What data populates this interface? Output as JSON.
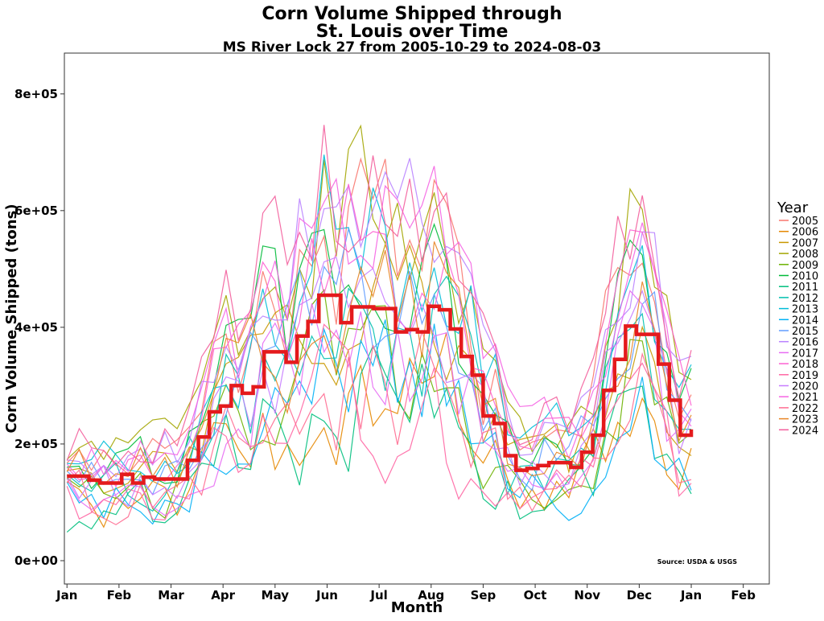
{
  "chart_data": {
    "type": "line",
    "title": "Corn Volume Shipped through\nSt. Louis over Time",
    "subtitle": "MS River Lock 27 from 2005-10-29 to 2024-08-03",
    "xlabel": "Month",
    "ylabel": "Corn Volume Shipped (tons)",
    "source": "Source: USDA & USGS",
    "legend_title": "Year",
    "legend_position": "right",
    "grid": false,
    "xlim": [
      0.95,
      14.5
    ],
    "ylim": [
      -40000,
      870000
    ],
    "x_ticks": [
      {
        "value": 1,
        "label": "Jan"
      },
      {
        "value": 2,
        "label": "Feb"
      },
      {
        "value": 3,
        "label": "Mar"
      },
      {
        "value": 4,
        "label": "Apr"
      },
      {
        "value": 5,
        "label": "May"
      },
      {
        "value": 6,
        "label": "Jun"
      },
      {
        "value": 7,
        "label": "Jul"
      },
      {
        "value": 8,
        "label": "Aug"
      },
      {
        "value": 9,
        "label": "Sep"
      },
      {
        "value": 10,
        "label": "Oct"
      },
      {
        "value": 11,
        "label": "Nov"
      },
      {
        "value": 12,
        "label": "Dec"
      },
      {
        "value": 13,
        "label": "Jan"
      },
      {
        "value": 14,
        "label": "Feb"
      }
    ],
    "y_ticks": [
      {
        "value": 0,
        "label": "0e+00"
      },
      {
        "value": 200000,
        "label": "2e+05"
      },
      {
        "value": 400000,
        "label": "4e+05"
      },
      {
        "value": 600000,
        "label": "6e+05"
      },
      {
        "value": 800000,
        "label": "8e+05"
      }
    ],
    "mean_line": {
      "color": "#e41a1c",
      "values": [
        145000,
        145000,
        138000,
        133000,
        133000,
        148000,
        133000,
        143000,
        140000,
        140000,
        140000,
        172000,
        212000,
        255000,
        265000,
        300000,
        287000,
        298000,
        358000,
        358000,
        340000,
        385000,
        410000,
        455000,
        455000,
        408000,
        435000,
        435000,
        432000,
        432000,
        392000,
        396000,
        392000,
        436000,
        430000,
        397000,
        350000,
        318000,
        248000,
        235000,
        180000,
        155000,
        158000,
        163000,
        168000,
        168000,
        160000,
        186000,
        215000,
        292000,
        345000,
        402000,
        388000,
        388000,
        337000,
        275000,
        215000,
        225000
      ]
    },
    "series": [
      {
        "name": "2005",
        "color": "#f8766d",
        "values": []
      },
      {
        "name": "2006",
        "color": "#e58700",
        "values": []
      },
      {
        "name": "2007",
        "color": "#c99800",
        "values": []
      },
      {
        "name": "2008",
        "color": "#a3a500",
        "values": []
      },
      {
        "name": "2009",
        "color": "#6bb100",
        "values": []
      },
      {
        "name": "2010",
        "color": "#00ba38",
        "values": []
      },
      {
        "name": "2011",
        "color": "#00bf7d",
        "values": []
      },
      {
        "name": "2012",
        "color": "#00c0af",
        "values": []
      },
      {
        "name": "2013",
        "color": "#00bcd8",
        "values": []
      },
      {
        "name": "2014",
        "color": "#00b0f6",
        "values": []
      },
      {
        "name": "2015",
        "color": "#619cff",
        "values": []
      },
      {
        "name": "2016",
        "color": "#b983ff",
        "values": []
      },
      {
        "name": "2017",
        "color": "#e76bf3",
        "values": []
      },
      {
        "name": "2018",
        "color": "#fd61d1",
        "values": []
      },
      {
        "name": "2019",
        "color": "#ff67a4",
        "values": []
      },
      {
        "name": "2020",
        "color": "#c77cff",
        "values": []
      },
      {
        "name": "2021",
        "color": "#f564e3",
        "values": []
      },
      {
        "name": "2022",
        "color": "#ff6c91",
        "values": []
      },
      {
        "name": "2023",
        "color": "#e88526",
        "values": []
      },
      {
        "name": "2024",
        "color": "#f35e9c",
        "values": []
      }
    ]
  }
}
